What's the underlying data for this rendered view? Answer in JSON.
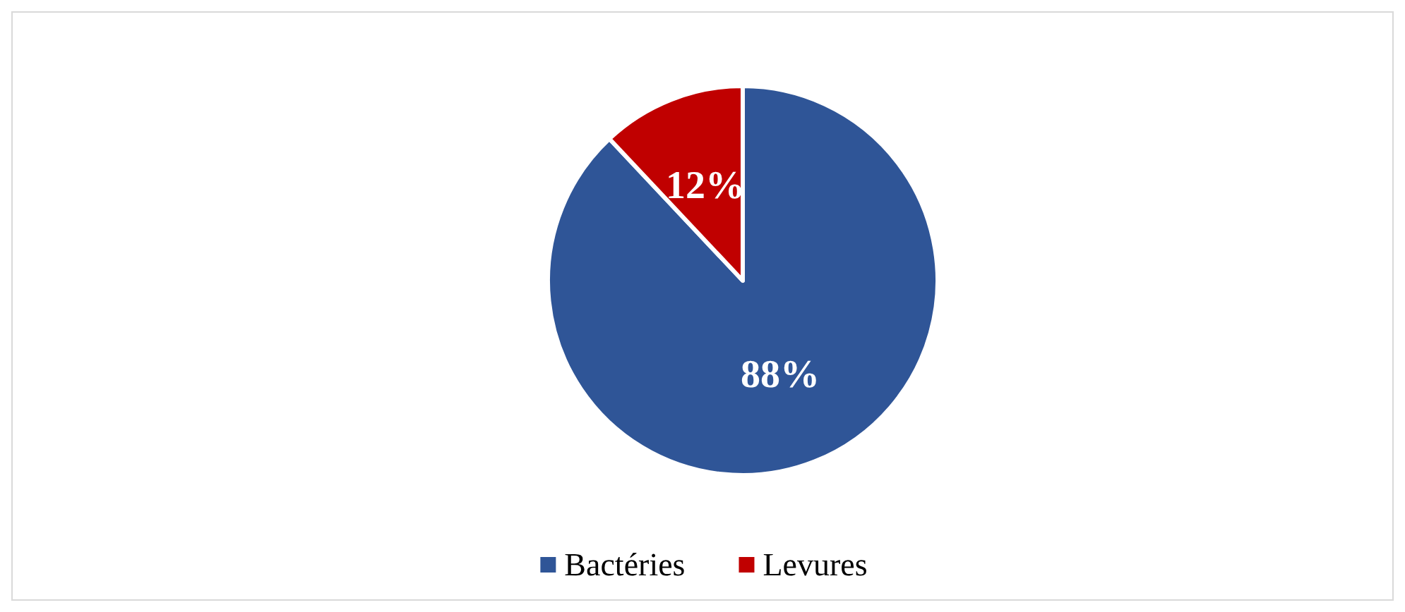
{
  "chart_data": {
    "type": "pie",
    "categories": [
      "Bactéries",
      "Levures"
    ],
    "values": [
      88,
      12
    ],
    "colors": [
      "#2f5597",
      "#c00000"
    ],
    "value_labels": [
      "88%",
      "12%"
    ],
    "legend": "bottom"
  }
}
